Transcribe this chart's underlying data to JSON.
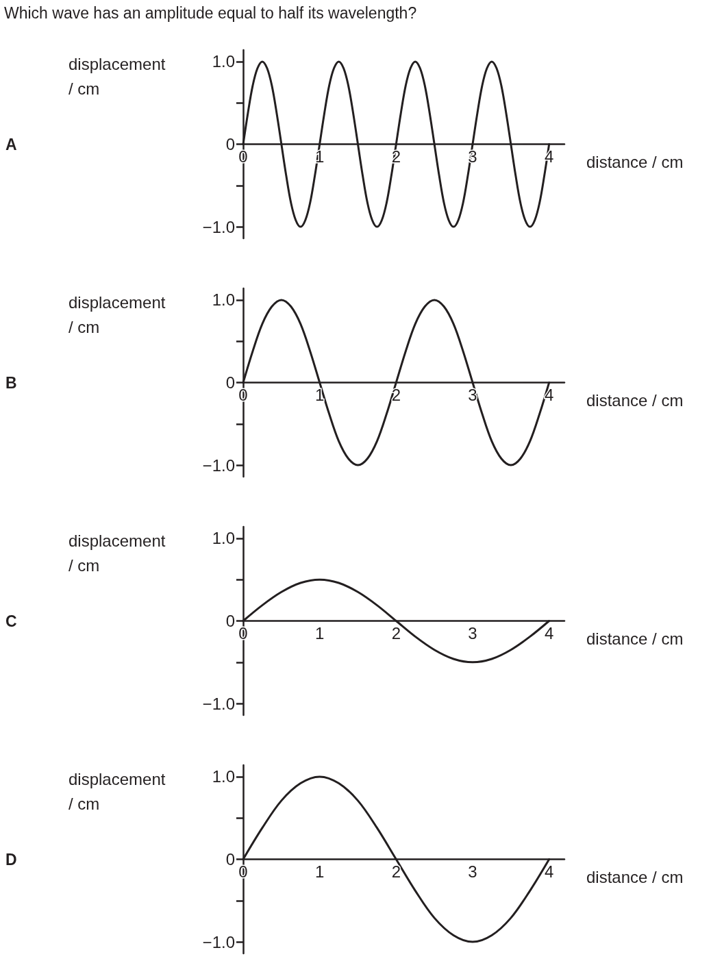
{
  "chart_data": [
    {
      "type": "line",
      "annotations": [
        "Which wave has an amplitude equal to half its wavelength?",
        {
          "text": "A"
        }
      ],
      "xlabel": "distance / cm",
      "ylabel": "displacement / cm",
      "marker": "none",
      "yticks": [
        {
          "value": -1,
          "label": "−1.0"
        },
        {
          "value": -0.5,
          "label": null
        },
        {
          "value": 0,
          "label": "0"
        },
        {
          "value": 0.5,
          "label": null
        },
        {
          "value": 1,
          "label": "1.0"
        }
      ],
      "x": [
        0,
        0.0625,
        0.125,
        0.1875,
        0.25,
        0.3125,
        0.375,
        0.4375,
        0.5,
        0.5625,
        0.625,
        0.6875,
        0.75,
        0.8125,
        0.875,
        0.9375,
        1,
        1.0625,
        1.125,
        1.1875,
        1.25,
        1.3125,
        1.375,
        1.4375,
        1.5,
        1.5625,
        1.625,
        1.6875,
        1.75,
        1.8125,
        1.875,
        1.9375,
        2,
        2.0625,
        2.125,
        2.1875,
        2.25,
        2.3125,
        2.375,
        2.4375,
        2.5,
        2.5625,
        2.625,
        2.6875,
        2.75,
        2.8125,
        2.875,
        2.9375,
        3,
        3.0625,
        3.125,
        3.1875,
        3.25,
        3.3125,
        3.375,
        3.4375,
        3.5,
        3.5625,
        3.625,
        3.6875,
        3.75,
        3.8125,
        3.875,
        3.9375,
        4
      ],
      "series": [
        {
          "color": "#231f20",
          "values": [
            0,
            0.38,
            0.71,
            0.92,
            1,
            0.92,
            0.71,
            0.38,
            0,
            -0.38,
            -0.71,
            -0.92,
            -1,
            -0.92,
            -0.71,
            -0.38,
            0,
            0.38,
            0.71,
            0.92,
            1,
            0.92,
            0.71,
            0.38,
            0,
            -0.38,
            -0.71,
            -0.92,
            -1,
            -0.92,
            -0.71,
            -0.38,
            0,
            0.38,
            0.71,
            0.92,
            1,
            0.92,
            0.71,
            0.38,
            0,
            -0.38,
            -0.71,
            -0.92,
            -1,
            -0.92,
            -0.71,
            -0.38,
            0,
            0.38,
            0.71,
            0.92,
            1,
            0.92,
            0.71,
            0.38,
            0,
            -0.38,
            -0.71,
            -0.92,
            -1,
            -0.92,
            -0.71,
            -0.38,
            0
          ]
        }
      ],
      "xlim": [
        0,
        4.2
      ],
      "xticks": [
        0,
        1,
        2,
        3,
        4
      ],
      "ylim": [
        -1.14,
        1.14
      ]
    },
    {
      "type": "line",
      "annotations": [
        {
          "text": "B"
        }
      ],
      "yticks": [
        {
          "value": -1,
          "label": "−1.0"
        },
        {
          "value": -0.5,
          "label": null
        },
        {
          "value": 0,
          "label": "0"
        },
        {
          "value": 0.5,
          "label": null
        },
        {
          "value": 1,
          "label": "1.0"
        }
      ],
      "xlabel": "distance / cm",
      "ylabel": "displacement / cm",
      "marker": "none",
      "x": [
        0,
        0.125,
        0.25,
        0.375,
        0.5,
        0.625,
        0.75,
        0.875,
        1,
        1.125,
        1.25,
        1.375,
        1.5,
        1.625,
        1.75,
        1.875,
        2,
        2.125,
        2.25,
        2.375,
        2.5,
        2.625,
        2.75,
        2.875,
        3,
        3.125,
        3.25,
        3.375,
        3.5,
        3.625,
        3.75,
        3.875,
        4
      ],
      "series": [
        {
          "color": "#231f20",
          "values": [
            0,
            0.38,
            0.71,
            0.92,
            1,
            0.92,
            0.71,
            0.38,
            0,
            -0.38,
            -0.71,
            -0.92,
            -1,
            -0.92,
            -0.71,
            -0.38,
            0,
            0.38,
            0.71,
            0.92,
            1,
            0.92,
            0.71,
            0.38,
            0,
            -0.38,
            -0.71,
            -0.92,
            -1,
            -0.92,
            -0.71,
            -0.38,
            0
          ]
        }
      ],
      "xlim": [
        0,
        4.2
      ],
      "xticks": [
        0,
        1,
        2,
        3,
        4
      ],
      "ylim": [
        -1.14,
        1.14
      ]
    },
    {
      "type": "line",
      "annotations": [
        {
          "text": "C"
        }
      ],
      "yticks": [
        {
          "value": -1,
          "label": "−1.0"
        },
        {
          "value": -0.5,
          "label": null
        },
        {
          "value": 0,
          "label": "0"
        },
        {
          "value": 0.5,
          "label": null
        },
        {
          "value": 1,
          "label": "1.0"
        }
      ],
      "xlabel": "distance / cm",
      "ylabel": "displacement / cm",
      "marker": "none",
      "x": [
        0,
        0.25,
        0.5,
        0.75,
        1,
        1.25,
        1.5,
        1.75,
        2,
        2.25,
        2.5,
        2.75,
        3,
        3.25,
        3.5,
        3.75,
        4
      ],
      "series": [
        {
          "color": "#231f20",
          "values": [
            0,
            0.19,
            0.35,
            0.46,
            0.5,
            0.46,
            0.35,
            0.19,
            0,
            -0.19,
            -0.35,
            -0.46,
            -0.5,
            -0.46,
            -0.35,
            -0.19,
            0
          ]
        }
      ],
      "xlim": [
        0,
        4.2
      ],
      "xticks": [
        0,
        1,
        2,
        3,
        4
      ],
      "ylim": [
        -1.14,
        1.14
      ]
    },
    {
      "type": "line",
      "annotations": [
        {
          "text": "D"
        }
      ],
      "yticks": [
        {
          "value": -1,
          "label": "−1.0"
        },
        {
          "value": -0.5,
          "label": null
        },
        {
          "value": 0,
          "label": "0"
        },
        {
          "value": 0.5,
          "label": null
        },
        {
          "value": 1,
          "label": "1.0"
        }
      ],
      "xlabel": "distance / cm",
      "ylabel": "displacement / cm",
      "marker": "none",
      "x": [
        0,
        0.25,
        0.5,
        0.75,
        1,
        1.25,
        1.5,
        1.75,
        2,
        2.25,
        2.5,
        2.75,
        3,
        3.25,
        3.5,
        3.75,
        4
      ],
      "series": [
        {
          "color": "#231f20",
          "values": [
            0,
            0.38,
            0.71,
            0.92,
            1,
            0.92,
            0.71,
            0.38,
            0,
            -0.38,
            -0.71,
            -0.92,
            -1,
            -0.92,
            -0.71,
            -0.38,
            0
          ]
        }
      ],
      "xlim": [
        0,
        4.2
      ],
      "xticks": [
        0,
        1,
        2,
        3,
        4
      ],
      "ylim": [
        -1.14,
        1.14
      ]
    }
  ]
}
